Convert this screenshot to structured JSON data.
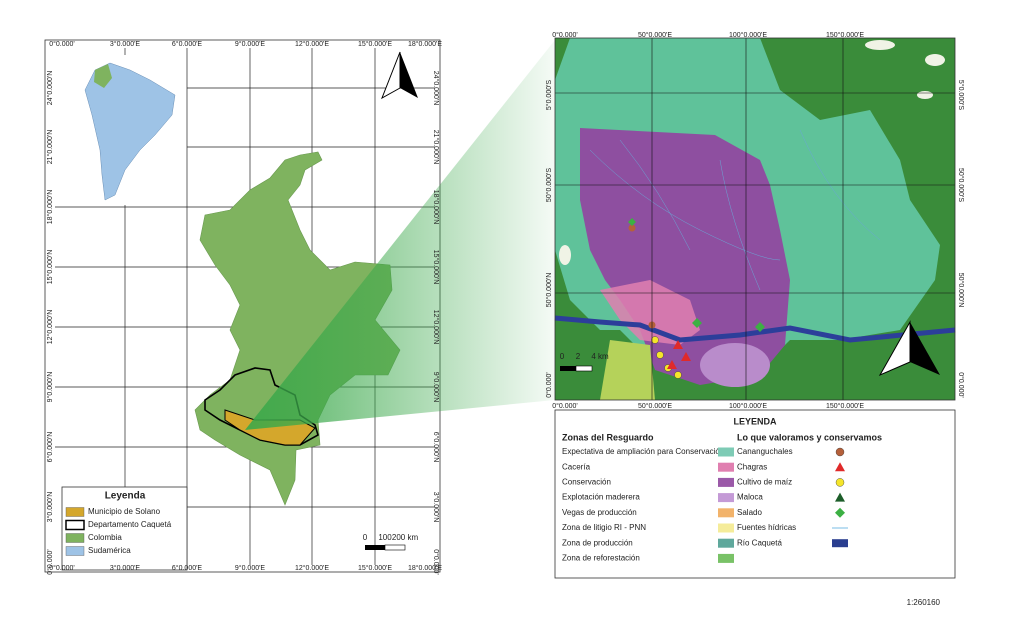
{
  "left_map": {
    "top_labels": [
      "0°0.000'",
      "3°0.000'E",
      "6°0.000'E",
      "9°0.000'E",
      "12°0.000'E",
      "15°0.000'E",
      "18°0.000'E"
    ],
    "bottom_labels": [
      "0°0.000'",
      "3°0.000'E",
      "6°0.000'E",
      "9°0.000'E",
      "12°0.000'E",
      "15°0.000'E",
      "18°0.000'E"
    ],
    "left_labels": [
      "24°0.000'N",
      "21°0.000'N",
      "18°0.000'N",
      "15°0.000'N",
      "12°0.000'N",
      "9°0.000'N",
      "6°0.000'N",
      "3°0.000'N",
      "0°0.000'"
    ],
    "right_labels": [
      "24°0.000'N",
      "21°0.000'N",
      "18°0.000'N",
      "15°0.000'N",
      "12°0.000'N",
      "9°0.000'N",
      "6°0.000'N",
      "3°0.000'N",
      "0°0.000'"
    ],
    "legend": {
      "title": "Leyenda",
      "items": [
        {
          "label": "Municipio de Solano",
          "color": "#d4a72c",
          "symbol": "fill"
        },
        {
          "label": "Departamento Caquetá",
          "color": "#000000",
          "symbol": "outline"
        },
        {
          "label": "Colombia",
          "color": "#7fb35f",
          "symbol": "fill"
        },
        {
          "label": "Sudamérica",
          "color": "#9ec3e6",
          "symbol": "fill"
        }
      ]
    },
    "scale": [
      "0",
      "100",
      "200 km"
    ]
  },
  "right_map": {
    "top_labels": [
      "0°0.000'",
      "50°0.000'E",
      "100°0.000'E",
      "150°0.000'E"
    ],
    "bottom_labels": [
      "0°0.000'",
      "50°0.000'E",
      "100°0.000'E",
      "150°0.000'E"
    ],
    "left_labels": [
      "5°0.000'S",
      "50°0.000'S",
      "50°0.000'N",
      "0°0.000'"
    ],
    "right_labels": [
      "5°0.000'S",
      "50°0.000'S",
      "50°0.000'N",
      "0°0.000'"
    ],
    "scale": [
      "0",
      "2",
      "4 km"
    ]
  },
  "legend": {
    "title": "LEYENDA",
    "zones_header": "Zonas del Resguardo",
    "values_header": "Lo que valoramos y conservamos",
    "zones": [
      {
        "label": "Expectativa de ampliación para Conservación",
        "color": "#7ecbb5"
      },
      {
        "label": "Cacería",
        "color": "#e07fb0"
      },
      {
        "label": "Conservación",
        "color": "#9b59a8"
      },
      {
        "label": "Explotación maderera",
        "color": "#c49ad6"
      },
      {
        "label": "Vegas de producción",
        "color": "#f2b36b"
      },
      {
        "label": "Zona de litigio RI - PNN",
        "color": "#f5ec9a"
      },
      {
        "label": "Zona de producción",
        "color": "#5fa89c"
      },
      {
        "label": "Zona de reforestación",
        "color": "#79c267"
      }
    ],
    "values": [
      {
        "label": "Cananguchales",
        "color": "#b5603a",
        "symbol": "circle"
      },
      {
        "label": "Chagras",
        "color": "#e02a2a",
        "symbol": "triangle"
      },
      {
        "label": "Cultivo de maíz",
        "color": "#f5e52a",
        "symbol": "circle"
      },
      {
        "label": "Maloca",
        "color": "#1d5e2a",
        "symbol": "triangle"
      },
      {
        "label": "Salado",
        "color": "#3cb043",
        "symbol": "diamond"
      },
      {
        "label": "Fuentes hídricas",
        "color": "#8fc7e8",
        "symbol": "line"
      },
      {
        "label": "Río Caquetá",
        "color": "#2a3e8f",
        "symbol": "rect"
      }
    ]
  },
  "scale_ratio": "1:260160"
}
